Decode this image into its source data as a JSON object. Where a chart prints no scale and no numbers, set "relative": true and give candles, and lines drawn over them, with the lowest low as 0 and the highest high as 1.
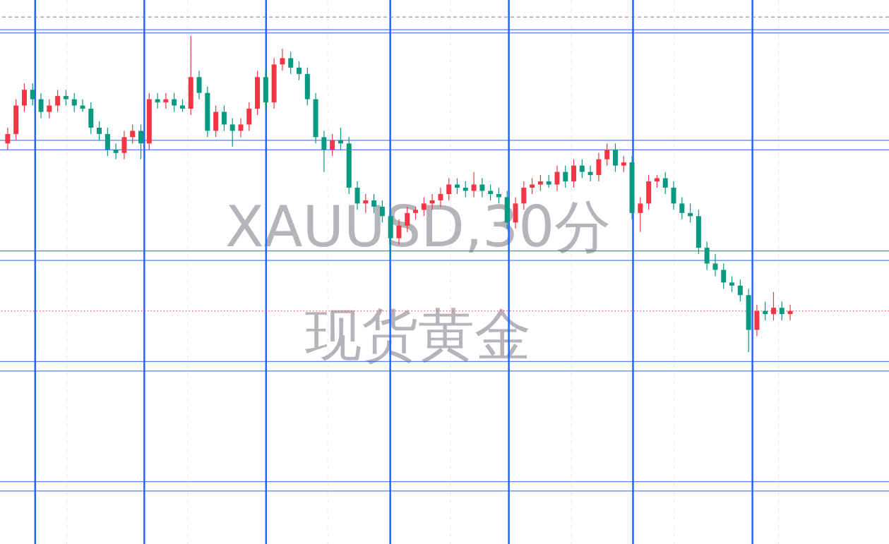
{
  "chart_data": {
    "type": "candlestick",
    "title": "XAUUSD,30分",
    "subtitle": "现货黄金",
    "relative": true,
    "categories": [
      null,
      null,
      null,
      null,
      null,
      null,
      null,
      null,
      null,
      null,
      null,
      null,
      null,
      null,
      null,
      null,
      null,
      null,
      null,
      null,
      null,
      null,
      null,
      null,
      null,
      null,
      null,
      null,
      null,
      null,
      null,
      null,
      null,
      null,
      null,
      null,
      null,
      null,
      null,
      null,
      null,
      null,
      null,
      null,
      null,
      null,
      null,
      null,
      null,
      null,
      null,
      null,
      null,
      null,
      null,
      null,
      null,
      null,
      null,
      null,
      null,
      null,
      null,
      null,
      null,
      null,
      null,
      null,
      null,
      null,
      null,
      null,
      null,
      null,
      null,
      null,
      null,
      null,
      null,
      null,
      null,
      null,
      null,
      null,
      null,
      null,
      null,
      null,
      null,
      null,
      null,
      null,
      null,
      null,
      null
    ],
    "ohlc": [
      [
        0.66,
        0.71,
        0.64,
        0.69
      ],
      [
        0.69,
        0.8,
        0.67,
        0.78
      ],
      [
        0.78,
        0.85,
        0.76,
        0.83
      ],
      [
        0.83,
        0.85,
        0.78,
        0.8
      ],
      [
        0.8,
        0.82,
        0.74,
        0.76
      ],
      [
        0.76,
        0.8,
        0.74,
        0.78
      ],
      [
        0.78,
        0.83,
        0.76,
        0.81
      ],
      [
        0.81,
        0.83,
        0.78,
        0.8
      ],
      [
        0.8,
        0.82,
        0.76,
        0.78
      ],
      [
        0.78,
        0.8,
        0.76,
        0.77
      ],
      [
        0.77,
        0.79,
        0.69,
        0.71
      ],
      [
        0.71,
        0.73,
        0.67,
        0.69
      ],
      [
        0.69,
        0.71,
        0.62,
        0.64
      ],
      [
        0.64,
        0.66,
        0.61,
        0.63
      ],
      [
        0.63,
        0.7,
        0.61,
        0.68
      ],
      [
        0.68,
        0.72,
        0.66,
        0.7
      ],
      [
        0.7,
        0.72,
        0.61,
        0.66
      ],
      [
        0.66,
        0.82,
        0.64,
        0.8
      ],
      [
        0.8,
        0.82,
        0.77,
        0.79
      ],
      [
        0.79,
        0.82,
        0.77,
        0.8
      ],
      [
        0.8,
        0.82,
        0.76,
        0.78
      ],
      [
        0.78,
        0.8,
        0.76,
        0.77
      ],
      [
        0.77,
        1.0,
        0.75,
        0.87
      ],
      [
        0.87,
        0.89,
        0.8,
        0.82
      ],
      [
        0.82,
        0.84,
        0.68,
        0.7
      ],
      [
        0.7,
        0.78,
        0.68,
        0.76
      ],
      [
        0.76,
        0.78,
        0.7,
        0.72
      ],
      [
        0.72,
        0.74,
        0.65,
        0.7
      ],
      [
        0.7,
        0.74,
        0.68,
        0.72
      ],
      [
        0.72,
        0.79,
        0.7,
        0.77
      ],
      [
        0.77,
        0.89,
        0.75,
        0.87
      ],
      [
        0.87,
        0.89,
        0.77,
        0.79
      ],
      [
        0.79,
        0.93,
        0.77,
        0.91
      ],
      [
        0.91,
        0.96,
        0.89,
        0.93
      ],
      [
        0.93,
        0.95,
        0.88,
        0.9
      ],
      [
        0.9,
        0.92,
        0.86,
        0.88
      ],
      [
        0.88,
        0.9,
        0.78,
        0.8
      ],
      [
        0.8,
        0.82,
        0.66,
        0.68
      ],
      [
        0.68,
        0.7,
        0.57,
        0.64
      ],
      [
        0.64,
        0.69,
        0.62,
        0.67
      ],
      [
        0.67,
        0.71,
        0.64,
        0.66
      ],
      [
        0.66,
        0.68,
        0.5,
        0.52
      ],
      [
        0.52,
        0.54,
        0.45,
        0.47
      ],
      [
        0.47,
        0.5,
        0.44,
        0.48
      ],
      [
        0.48,
        0.5,
        0.44,
        0.46
      ],
      [
        0.46,
        0.48,
        0.41,
        0.43
      ],
      [
        0.43,
        0.45,
        0.29,
        0.36
      ],
      [
        0.36,
        0.42,
        0.34,
        0.4
      ],
      [
        0.4,
        0.46,
        0.38,
        0.44
      ],
      [
        0.44,
        0.46,
        0.42,
        0.45
      ],
      [
        0.45,
        0.49,
        0.43,
        0.47
      ],
      [
        0.47,
        0.5,
        0.45,
        0.48
      ],
      [
        0.48,
        0.52,
        0.46,
        0.5
      ],
      [
        0.5,
        0.55,
        0.48,
        0.53
      ],
      [
        0.53,
        0.55,
        0.5,
        0.52
      ],
      [
        0.52,
        0.54,
        0.49,
        0.51
      ],
      [
        0.51,
        0.57,
        0.49,
        0.53
      ],
      [
        0.53,
        0.55,
        0.49,
        0.51
      ],
      [
        0.51,
        0.53,
        0.48,
        0.5
      ],
      [
        0.5,
        0.52,
        0.47,
        0.49
      ],
      [
        0.49,
        0.51,
        0.39,
        0.41
      ],
      [
        0.41,
        0.49,
        0.39,
        0.47
      ],
      [
        0.47,
        0.54,
        0.45,
        0.52
      ],
      [
        0.52,
        0.55,
        0.5,
        0.53
      ],
      [
        0.53,
        0.56,
        0.51,
        0.54
      ],
      [
        0.54,
        0.56,
        0.52,
        0.53
      ],
      [
        0.53,
        0.59,
        0.51,
        0.57
      ],
      [
        0.57,
        0.59,
        0.52,
        0.54
      ],
      [
        0.54,
        0.61,
        0.52,
        0.59
      ],
      [
        0.59,
        0.61,
        0.55,
        0.57
      ],
      [
        0.57,
        0.59,
        0.54,
        0.56
      ],
      [
        0.56,
        0.63,
        0.54,
        0.61
      ],
      [
        0.61,
        0.66,
        0.59,
        0.64
      ],
      [
        0.64,
        0.66,
        0.57,
        0.59
      ],
      [
        0.59,
        0.62,
        0.57,
        0.6
      ],
      [
        0.6,
        0.62,
        0.42,
        0.44
      ],
      [
        0.44,
        0.49,
        0.38,
        0.47
      ],
      [
        0.47,
        0.56,
        0.45,
        0.54
      ],
      [
        0.54,
        0.56,
        0.52,
        0.55
      ],
      [
        0.55,
        0.57,
        0.5,
        0.52
      ],
      [
        0.52,
        0.54,
        0.45,
        0.47
      ],
      [
        0.47,
        0.49,
        0.42,
        0.44
      ],
      [
        0.44,
        0.47,
        0.41,
        0.43
      ],
      [
        0.43,
        0.45,
        0.31,
        0.33
      ],
      [
        0.33,
        0.35,
        0.26,
        0.28
      ],
      [
        0.28,
        0.31,
        0.24,
        0.26
      ],
      [
        0.26,
        0.28,
        0.2,
        0.22
      ],
      [
        0.22,
        0.24,
        0.19,
        0.21
      ],
      [
        0.21,
        0.23,
        0.16,
        0.18
      ],
      [
        0.18,
        0.2,
        0.0,
        0.07
      ],
      [
        0.07,
        0.15,
        0.05,
        0.13
      ],
      [
        0.13,
        0.16,
        0.1,
        0.12
      ],
      [
        0.12,
        0.19,
        0.1,
        0.14
      ],
      [
        0.14,
        0.16,
        0.1,
        0.12
      ],
      [
        0.12,
        0.15,
        0.1,
        0.13
      ]
    ],
    "colors": [
      "#f23645",
      "#f23645",
      "#f23645",
      "#089981",
      "#089981",
      "#f23645",
      "#f23645",
      "#089981",
      "#089981",
      "#089981",
      "#089981",
      "#089981",
      "#089981",
      "#089981",
      "#f23645",
      "#f23645",
      "#089981",
      "#f23645",
      "#089981",
      "#f23645",
      "#089981",
      "#089981",
      "#f23645",
      "#089981",
      "#089981",
      "#f23645",
      "#089981",
      "#089981",
      "#f23645",
      "#f23645",
      "#f23645",
      "#089981",
      "#f23645",
      "#f23645",
      "#089981",
      "#089981",
      "#089981",
      "#089981",
      "#089981",
      "#f23645",
      "#089981",
      "#089981",
      "#089981",
      "#f23645",
      "#089981",
      "#089981",
      "#089981",
      "#f23645",
      "#f23645",
      "#f23645",
      "#f23645",
      "#f23645",
      "#f23645",
      "#f23645",
      "#089981",
      "#089981",
      "#f23645",
      "#089981",
      "#089981",
      "#089981",
      "#089981",
      "#f23645",
      "#f23645",
      "#f23645",
      "#f23645",
      "#089981",
      "#f23645",
      "#089981",
      "#f23645",
      "#089981",
      "#089981",
      "#f23645",
      "#f23645",
      "#089981",
      "#f23645",
      "#089981",
      "#f23645",
      "#f23645",
      "#f23645",
      "#089981",
      "#089981",
      "#089981",
      "#089981",
      "#089981",
      "#089981",
      "#089981",
      "#089981",
      "#089981",
      "#089981",
      "#089981",
      "#f23645",
      "#089981",
      "#f23645",
      "#089981",
      "#f23645"
    ],
    "ref_lines": [
      {
        "axis": "y",
        "value": 1.06,
        "color": "#787b86",
        "line_style": "dashed"
      },
      {
        "axis": "y",
        "value": 1.02,
        "color": "#2962ff"
      },
      {
        "axis": "y",
        "value": 1.01,
        "color": "#2962ff"
      },
      {
        "axis": "y",
        "value": 0.67,
        "color": "#2962ff"
      },
      {
        "axis": "y",
        "value": 0.64,
        "color": "#2962ff"
      },
      {
        "axis": "y",
        "value": 0.32,
        "color": "#2962ff"
      },
      {
        "axis": "y",
        "value": 0.29,
        "color": "#2962ff"
      },
      {
        "axis": "y",
        "value": 0.13,
        "color": "#f23645",
        "line_style": "dotted"
      },
      {
        "axis": "y",
        "value": -0.03,
        "color": "#2962ff"
      },
      {
        "axis": "y",
        "value": -0.06,
        "color": "#2962ff"
      },
      {
        "axis": "y",
        "value": -0.41,
        "color": "#2962ff"
      },
      {
        "axis": "y",
        "value": -0.44,
        "color": "#2962ff"
      }
    ],
    "grid": "x"
  }
}
